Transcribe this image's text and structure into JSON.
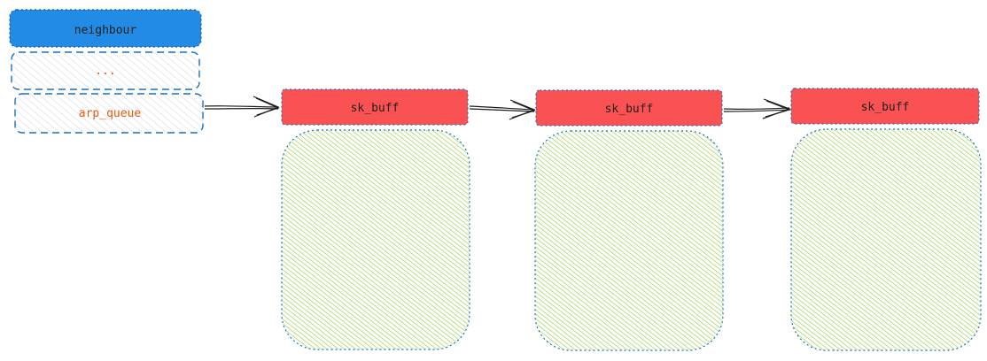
{
  "neighbour": {
    "title": "neighbour",
    "fields": [
      "...",
      "arp_queue"
    ]
  },
  "queue": [
    {
      "label": "sk_buff"
    },
    {
      "label": "sk_buff"
    },
    {
      "label": "sk_buff"
    }
  ],
  "colors": {
    "header_blue": "#228be6",
    "header_red": "#fa5252",
    "data_green": "#82c91e",
    "field_text": "#e8590c",
    "stroke_blue": "#1971c2",
    "field_fill": "#dee2e6",
    "arrow": "#1e1e1e"
  }
}
